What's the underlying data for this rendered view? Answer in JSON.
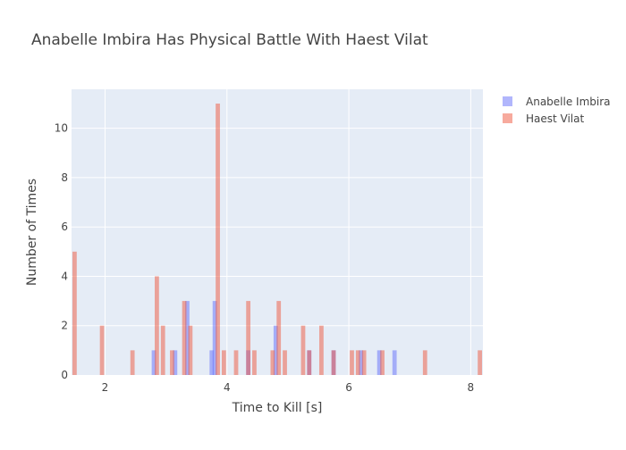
{
  "chart_data": {
    "type": "bar",
    "title": "Anabelle Imbira Has Physical Battle With Haest Vilat",
    "xlabel": "Time to Kill [s]",
    "ylabel": "Number of Times",
    "xlim": [
      1.45,
      8.2
    ],
    "ylim": [
      0,
      11.58
    ],
    "x_ticks": [
      2,
      4,
      6,
      8
    ],
    "y_ticks": [
      0,
      2,
      4,
      6,
      8,
      10
    ],
    "grid": true,
    "legend_position": "top-right",
    "bin_width": 0.1,
    "series": [
      {
        "name": "Anabelle Imbira",
        "color": "#636efa",
        "opacity": 0.5,
        "x": [
          2.8,
          3.15,
          3.35,
          3.75,
          3.8,
          4.35,
          4.8,
          5.35,
          5.75,
          6.2,
          6.5,
          6.75
        ],
        "values": [
          1,
          1,
          3,
          1,
          3,
          1,
          2,
          1,
          1,
          1,
          1,
          1
        ]
      },
      {
        "name": "Haest Vilat",
        "color": "#ef553b",
        "opacity": 0.5,
        "x": [
          1.5,
          1.95,
          2.45,
          2.85,
          2.95,
          3.1,
          3.3,
          3.4,
          3.85,
          3.95,
          4.15,
          4.35,
          4.45,
          4.75,
          4.85,
          4.95,
          5.25,
          5.35,
          5.55,
          5.75,
          6.05,
          6.15,
          6.25,
          6.55,
          7.25,
          8.15
        ],
        "values": [
          5,
          2,
          1,
          4,
          2,
          1,
          3,
          2,
          11,
          1,
          1,
          3,
          1,
          1,
          3,
          1,
          2,
          1,
          2,
          1,
          1,
          1,
          1,
          1,
          1,
          1
        ]
      }
    ]
  }
}
